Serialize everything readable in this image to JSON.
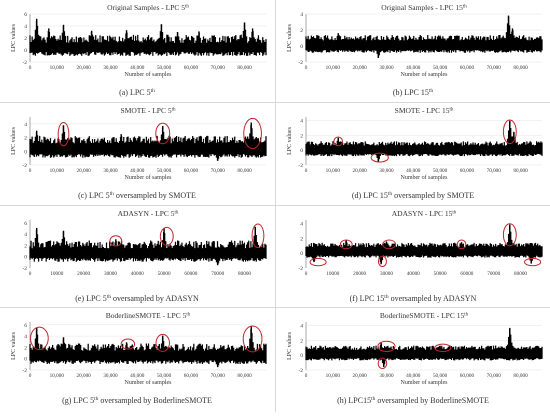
{
  "colors": {
    "series": "#000000",
    "highlight": "#c0262b",
    "axis": "#555555",
    "text": "#333333"
  },
  "chart_data": [
    {
      "type": "area",
      "title": "Original Samples - LPC 5",
      "title_sup": "th",
      "caption": "(a) LPC 5",
      "caption_sup": "th",
      "caption_after": "",
      "ylabel": "LPC values",
      "xlabel": "Number of samples",
      "yticks": [
        "6",
        "4",
        "2",
        "0",
        "-2"
      ],
      "ylim": [
        -2,
        6
      ],
      "xticks": [
        "0",
        "10,000",
        "20,000",
        "30,000",
        "40,000",
        "50,000",
        "60,000",
        "70,000",
        "80,000"
      ],
      "xlim": [
        0,
        88000
      ],
      "grid": true,
      "series": [
        {
          "base_upper": 1.6,
          "base_lower": -0.3,
          "noise": 1.4,
          "seed": 11,
          "spikes": [
            {
              "x": 2500,
              "y": 5.2
            },
            {
              "x": 7000,
              "y": 3.6
            },
            {
              "x": 12500,
              "y": 4.2
            },
            {
              "x": 23000,
              "y": 3.2
            },
            {
              "x": 36000,
              "y": 3.3
            },
            {
              "x": 49000,
              "y": 4.3
            },
            {
              "x": 55000,
              "y": 3.0
            },
            {
              "x": 63000,
              "y": 3.1
            },
            {
              "x": 80000,
              "y": 4.6
            },
            {
              "x": 83000,
              "y": 3.6
            }
          ]
        }
      ],
      "highlights": []
    },
    {
      "type": "area",
      "title": "Original Samples - LPC 15",
      "title_sup": "th",
      "caption": "(b) LPC 15",
      "caption_sup": "th",
      "caption_after": "",
      "ylabel": "LPC values",
      "xlabel": "Number of samples",
      "yticks": [
        "4",
        "2",
        "0",
        "-2"
      ],
      "ylim": [
        -2,
        4
      ],
      "xticks": [
        "0",
        "10,000",
        "20,000",
        "30,000",
        "40,000",
        "50,000",
        "60,000",
        "70,000",
        "80,000"
      ],
      "xlim": [
        0,
        88000
      ],
      "grid": true,
      "series": [
        {
          "base_upper": 0.9,
          "base_lower": -0.5,
          "noise": 0.7,
          "seed": 12,
          "spikes": [
            {
              "x": 12000,
              "y": 1.6
            },
            {
              "x": 27000,
              "y": -1.5
            },
            {
              "x": 50000,
              "y": 1.3
            },
            {
              "x": 75500,
              "y": 3.8
            },
            {
              "x": 77000,
              "y": 2.2
            }
          ]
        }
      ],
      "highlights": []
    },
    {
      "type": "area",
      "title": "SMOTE - LPC 5",
      "title_sup": "th",
      "caption": "(c) LPC 5",
      "caption_sup": "th",
      "caption_after": " oversampled by SMOTE",
      "ylabel": "LPC values",
      "xlabel": "Number of samples",
      "yticks": [
        "4",
        "2",
        "0",
        "-2"
      ],
      "ylim": [
        -2,
        5
      ],
      "xticks": [
        "0",
        "10,000",
        "20,000",
        "30,000",
        "40,000",
        "50,000",
        "60,000",
        "70,000",
        "80,000"
      ],
      "xlim": [
        0,
        88000
      ],
      "grid": true,
      "series": [
        {
          "base_upper": 1.5,
          "base_lower": -0.4,
          "noise": 1.1,
          "seed": 13,
          "spikes": [
            {
              "x": 2500,
              "y": 3.0
            },
            {
              "x": 12500,
              "y": 3.8
            },
            {
              "x": 34000,
              "y": 2.5
            },
            {
              "x": 49500,
              "y": 3.7
            },
            {
              "x": 82500,
              "y": 4.2
            },
            {
              "x": 70000,
              "y": -1.4
            }
          ]
        }
      ],
      "highlights": [
        {
          "x": 12500,
          "y": 2.5,
          "rx": 2000,
          "ry": 1.7
        },
        {
          "x": 49500,
          "y": 2.6,
          "rx": 2600,
          "ry": 1.5
        },
        {
          "x": 83000,
          "y": 2.6,
          "rx": 3300,
          "ry": 2.2
        }
      ]
    },
    {
      "type": "area",
      "title": "SMOTE - LPC 15",
      "title_sup": "th",
      "caption": "(d) LPC 15",
      "caption_sup": "th",
      "caption_after": "  oversampled by SMOTE",
      "ylabel": "LPC values",
      "xlabel": "Number of samples",
      "yticks": [
        "4",
        "2",
        "0",
        "-2"
      ],
      "ylim": [
        -2,
        4.5
      ],
      "xticks": [
        "0",
        "10,000",
        "20,000",
        "30,000",
        "40,000",
        "50,000",
        "60,000",
        "70,000",
        "80,000"
      ],
      "xlim": [
        0,
        88000
      ],
      "grid": true,
      "series": [
        {
          "base_upper": 0.8,
          "base_lower": -0.5,
          "noise": 0.6,
          "seed": 14,
          "spikes": [
            {
              "x": 12000,
              "y": 1.7
            },
            {
              "x": 27000,
              "y": -1.6
            },
            {
              "x": 76000,
              "y": 4.0
            },
            {
              "x": 77500,
              "y": 2.5
            }
          ]
        }
      ],
      "highlights": [
        {
          "x": 12000,
          "y": 1.2,
          "rx": 1600,
          "ry": 0.6
        },
        {
          "x": 27500,
          "y": -1.0,
          "rx": 3200,
          "ry": 0.6
        },
        {
          "x": 76000,
          "y": 2.5,
          "rx": 2400,
          "ry": 1.6
        }
      ]
    },
    {
      "type": "area",
      "title": "ADASYN - LPC 5",
      "title_sup": "th",
      "caption": "(e) LPC 5",
      "caption_sup": "th",
      "caption_after": " oversampled by ADASYN",
      "ylabel": "",
      "xlabel": "",
      "yticks": [
        "6",
        "4",
        "2",
        "0",
        "-2"
      ],
      "ylim": [
        -2,
        6.5
      ],
      "xticks": [
        "0",
        "10000",
        "20000",
        "30000",
        "40000",
        "50000",
        "60000",
        "70000",
        "80000"
      ],
      "xlim": [
        0,
        88000
      ],
      "grid": false,
      "series": [
        {
          "base_upper": 1.9,
          "base_lower": -0.2,
          "noise": 1.4,
          "seed": 15,
          "spikes": [
            {
              "x": 2500,
              "y": 5.1
            },
            {
              "x": 12500,
              "y": 4.6
            },
            {
              "x": 32000,
              "y": 3.1
            },
            {
              "x": 50000,
              "y": 5.0
            },
            {
              "x": 84000,
              "y": 5.3
            },
            {
              "x": 70000,
              "y": -1.5
            }
          ]
        }
      ],
      "highlights": [
        {
          "x": 32000,
          "y": 2.8,
          "rx": 2200,
          "ry": 0.9
        },
        {
          "x": 51000,
          "y": 3.6,
          "rx": 2400,
          "ry": 1.6
        },
        {
          "x": 85000,
          "y": 3.7,
          "rx": 2200,
          "ry": 2.1
        }
      ]
    },
    {
      "type": "area",
      "title": "ADASYN - LPC 15",
      "title_sup": "th",
      "caption": "(f) LPC 15",
      "caption_sup": "th",
      "caption_after": " oversampled by ADASYN",
      "ylabel": "",
      "xlabel": "",
      "yticks": [
        "4",
        "2",
        "0",
        "-2"
      ],
      "ylim": [
        -2,
        4.5
      ],
      "xticks": [
        "0",
        "10000",
        "20000",
        "30000",
        "40000",
        "50000",
        "60000",
        "70000",
        "80000"
      ],
      "xlim": [
        0,
        88000
      ],
      "grid": false,
      "series": [
        {
          "base_upper": 1.0,
          "base_lower": -0.3,
          "noise": 0.6,
          "seed": 16,
          "spikes": [
            {
              "x": 3000,
              "y": -1.2
            },
            {
              "x": 15000,
              "y": 1.8
            },
            {
              "x": 28000,
              "y": -1.5
            },
            {
              "x": 30000,
              "y": 1.6
            },
            {
              "x": 58000,
              "y": 1.5
            },
            {
              "x": 76000,
              "y": 3.9
            },
            {
              "x": 84000,
              "y": -1.4
            }
          ]
        }
      ],
      "highlights": [
        {
          "x": 4500,
          "y": -1.2,
          "rx": 3000,
          "ry": 0.5
        },
        {
          "x": 15000,
          "y": 1.2,
          "rx": 2200,
          "ry": 0.6
        },
        {
          "x": 28500,
          "y": -1.1,
          "rx": 1500,
          "ry": 0.7
        },
        {
          "x": 31000,
          "y": 1.2,
          "rx": 2400,
          "ry": 0.6
        },
        {
          "x": 58000,
          "y": 1.2,
          "rx": 1600,
          "ry": 0.6
        },
        {
          "x": 76000,
          "y": 2.5,
          "rx": 2400,
          "ry": 1.5
        },
        {
          "x": 84500,
          "y": -1.2,
          "rx": 3000,
          "ry": 0.5
        }
      ]
    },
    {
      "type": "area",
      "title": "BoderlineSMOTE - LPC 5",
      "title_sup": "th",
      "caption": "(g) LPC 5",
      "caption_sup": "th",
      "caption_after": " oversampled by BoderlineSMOTE",
      "ylabel": "LPC values",
      "xlabel": "Number of samples",
      "yticks": [
        "6",
        "4",
        "2",
        "0",
        "-2"
      ],
      "ylim": [
        -2,
        6.5
      ],
      "xticks": [
        "0",
        "10,000",
        "20,000",
        "30,000",
        "40,000",
        "50,000",
        "60,000",
        "70,000",
        "80,000"
      ],
      "xlim": [
        0,
        88000
      ],
      "grid": true,
      "series": [
        {
          "base_upper": 1.8,
          "base_lower": -0.3,
          "noise": 1.3,
          "seed": 17,
          "spikes": [
            {
              "x": 2500,
              "y": 5.5
            },
            {
              "x": 12500,
              "y": 3.8
            },
            {
              "x": 36000,
              "y": 2.9
            },
            {
              "x": 49500,
              "y": 4.1
            },
            {
              "x": 82500,
              "y": 5.7
            },
            {
              "x": 70000,
              "y": -1.5
            }
          ]
        }
      ],
      "highlights": [
        {
          "x": 3500,
          "y": 3.6,
          "rx": 3300,
          "ry": 2.0
        },
        {
          "x": 36500,
          "y": 2.6,
          "rx": 2500,
          "ry": 0.9
        },
        {
          "x": 49500,
          "y": 2.8,
          "rx": 2500,
          "ry": 1.5
        },
        {
          "x": 83000,
          "y": 3.5,
          "rx": 3500,
          "ry": 2.3
        }
      ]
    },
    {
      "type": "area",
      "title": "BoderlineSMOTE - LPC 15",
      "title_sup": "th",
      "caption": "(h) LPC15",
      "caption_sup": "th",
      "caption_after": " oversampled by BoderlineSMOTE",
      "ylabel": "LPC values",
      "xlabel": "Number of samples",
      "yticks": [
        "4",
        "2",
        "0",
        "-2"
      ],
      "ylim": [
        -2,
        4.5
      ],
      "xticks": [
        "0",
        "10,000",
        "20,000",
        "30,000",
        "40,000",
        "50,000",
        "60,000",
        "70,000",
        "80,000"
      ],
      "xlim": [
        0,
        88000
      ],
      "grid": true,
      "series": [
        {
          "base_upper": 0.9,
          "base_lower": -0.4,
          "noise": 0.6,
          "seed": 18,
          "spikes": [
            {
              "x": 28000,
              "y": 1.7
            },
            {
              "x": 29000,
              "y": -1.6
            },
            {
              "x": 50000,
              "y": 1.3
            },
            {
              "x": 76000,
              "y": 3.7
            }
          ]
        }
      ],
      "highlights": [
        {
          "x": 30000,
          "y": 1.2,
          "rx": 3200,
          "ry": 0.7
        },
        {
          "x": 28500,
          "y": -1.1,
          "rx": 1600,
          "ry": 0.7
        },
        {
          "x": 51000,
          "y": 1.0,
          "rx": 3000,
          "ry": 0.5
        }
      ]
    }
  ]
}
